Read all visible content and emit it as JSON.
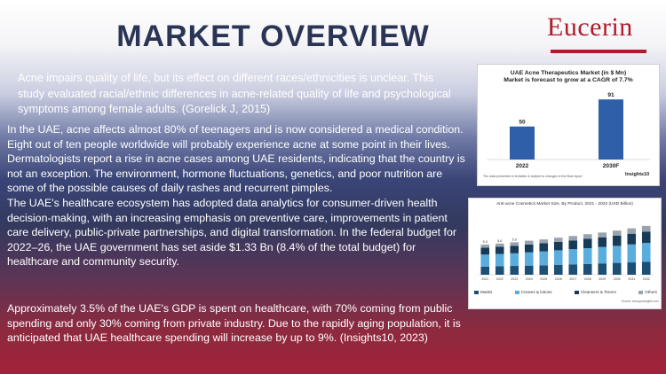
{
  "title": "MARKET OVERVIEW",
  "logo_text": "Eucerin",
  "intro": "Acne impairs quality of life, but its effect on different races/ethnicities is unclear. This study evaluated racial/ethnic differences in acne-related quality of life and psychological symptoms among female adults. (Gorelick J, 2015)",
  "para1": "In the UAE, acne affects almost 80% of teenagers and is now considered a medical condition. Eight out of ten people worldwide will probably experience acne at some point in their lives. Dermatologists report a rise in acne cases among UAE residents, indicating that the country is not an exception. The environment, hormone fluctuations, genetics, and poor nutrition are some of the possible causes of daily rashes and recurrent pimples.",
  "para2": "The UAE's healthcare ecosystem has adopted data analytics for consumer-driven health decision-making, with an increasing emphasis on preventive care, improvements in patient care delivery, public-private partnerships, and digital transformation. In the federal budget for 2022–26, the UAE government has set aside $1.33 Bn (8.4% of the total budget) for healthcare and community security.",
  "para3": "Approximately 3.5% of the UAE's GDP is spent on healthcare, with 70% coming from public spending and only 30% coming from private industry. Due to the rapidly aging population, it is anticipated that UAE healthcare spending will increase by up to 9%. (Insights10, 2023)",
  "chart_data": [
    {
      "type": "bar",
      "title": "UAE Acne Therapeutics Market (in $ Mn)",
      "subtitle": "Market is forecast to grow at a CAGR of 7.7%",
      "categories": [
        "2022",
        "2030F"
      ],
      "values": [
        50,
        91
      ],
      "ylim": [
        0,
        100
      ],
      "color": "#2f5fa8",
      "footnote": "The data presented is tentative & subject to changes in the final report",
      "brand": "Insights10"
    },
    {
      "type": "bar",
      "title": "Anti-acne Cosmetics Market Size, By Product, 2021 - 2032 (USD Billion)",
      "categories": [
        "2021",
        "2022",
        "2023",
        "2024",
        "2025",
        "2026",
        "2027",
        "2028",
        "2029",
        "2030",
        "2031",
        "2032"
      ],
      "series": [
        {
          "name": "Masks",
          "color": "#1d4e73",
          "values": [
            1.3,
            1.35,
            1.4,
            1.45,
            1.5,
            1.58,
            1.65,
            1.72,
            1.8,
            1.88,
            1.96,
            2.05
          ]
        },
        {
          "name": "Creams & lotions",
          "color": "#5aaede",
          "values": [
            1.9,
            1.95,
            2.0,
            2.1,
            2.2,
            2.3,
            2.4,
            2.5,
            2.6,
            2.7,
            2.85,
            3.0
          ]
        },
        {
          "name": "Cleansers & Toners",
          "color": "#173a57",
          "values": [
            1.1,
            1.15,
            1.2,
            1.25,
            1.3,
            1.35,
            1.4,
            1.5,
            1.55,
            1.62,
            1.7,
            1.8
          ]
        },
        {
          "name": "Others",
          "color": "#9aa3ad",
          "values": [
            0.5,
            0.5,
            0.55,
            0.6,
            0.6,
            0.65,
            0.7,
            0.72,
            0.75,
            0.8,
            0.85,
            0.9
          ]
        }
      ],
      "data_labels": [
        "5.3",
        "5.6",
        "5.9"
      ],
      "source": "Source: www.gminsights.com"
    }
  ]
}
